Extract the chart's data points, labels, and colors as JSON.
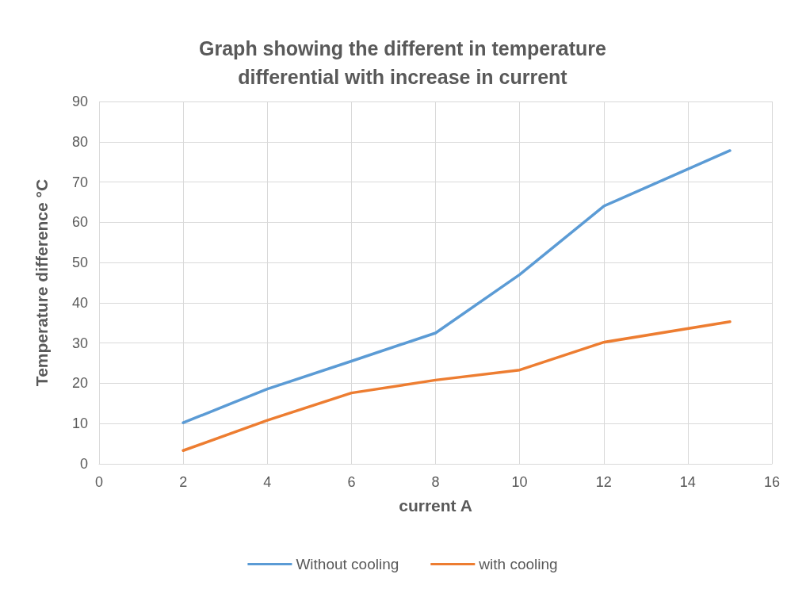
{
  "chart_data": {
    "type": "line",
    "title": "Graph showing the different in temperature\ndifferential with increase in current",
    "xlabel": "current A",
    "ylabel": "Temperature difference °C",
    "x": [
      2,
      4,
      6,
      8,
      10,
      12,
      15
    ],
    "series": [
      {
        "name": "Without cooling",
        "color": "#5b9bd5",
        "values": [
          10.2,
          18.6,
          25.5,
          32.5,
          47,
          64,
          77.8
        ]
      },
      {
        "name": "with cooling",
        "color": "#ed7d31",
        "values": [
          3.3,
          10.8,
          17.6,
          20.8,
          23.3,
          30.2,
          35.3
        ]
      }
    ],
    "xlim": [
      0,
      16
    ],
    "xticks": [
      0,
      2,
      4,
      6,
      8,
      10,
      12,
      14,
      16
    ],
    "ylim": [
      0,
      90
    ],
    "yticks": [
      0,
      10,
      20,
      30,
      40,
      50,
      60,
      70,
      80,
      90
    ],
    "grid": true,
    "legend": "bottom",
    "marker": "none",
    "line_style": "solid"
  }
}
